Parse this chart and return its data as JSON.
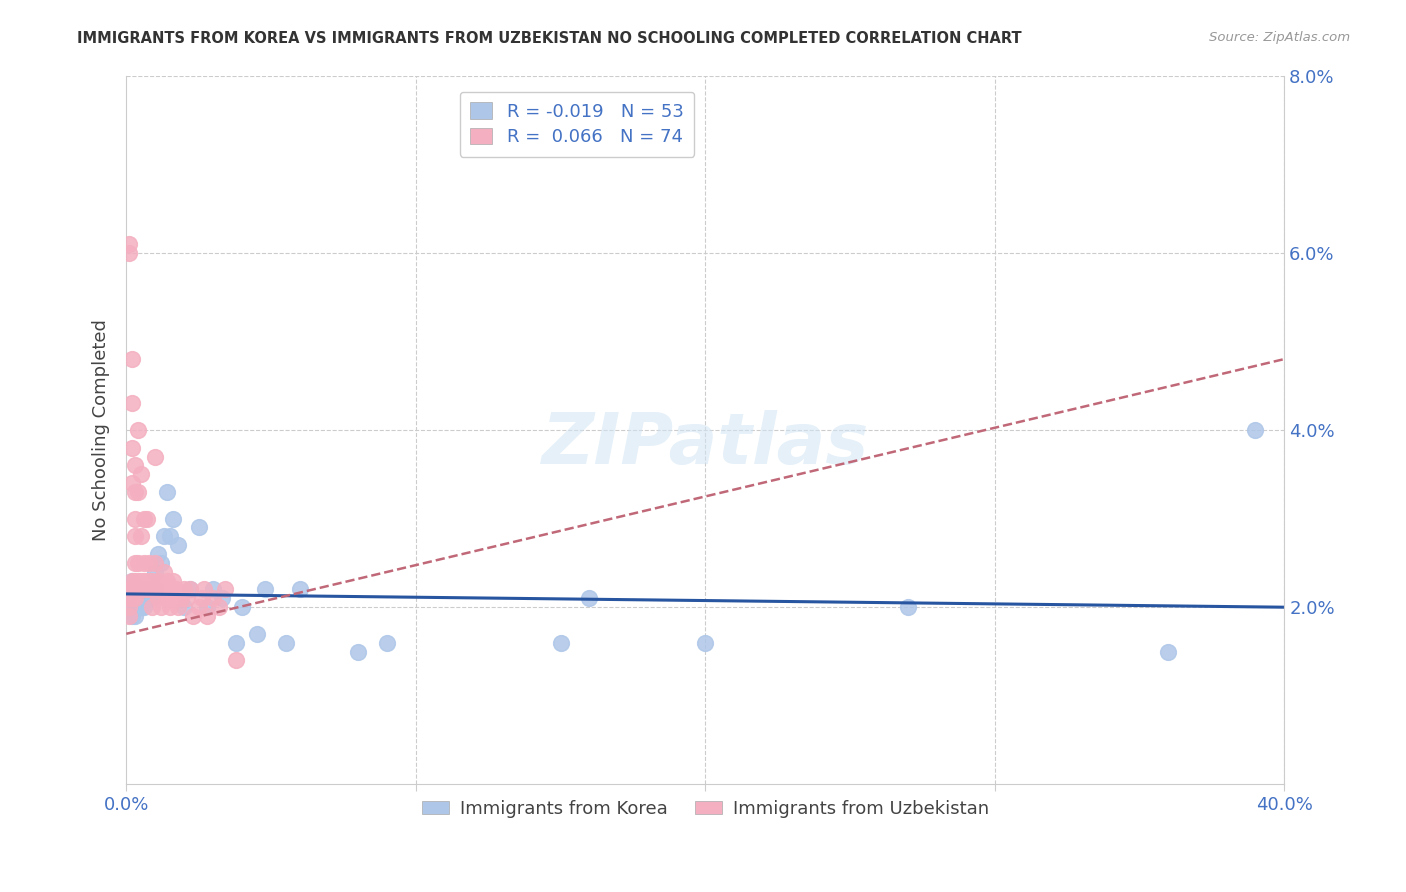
{
  "title": "IMMIGRANTS FROM KOREA VS IMMIGRANTS FROM UZBEKISTAN NO SCHOOLING COMPLETED CORRELATION CHART",
  "source": "Source: ZipAtlas.com",
  "ylabel": "No Schooling Completed",
  "xlabel_korea": "Immigrants from Korea",
  "xlabel_uzbekistan": "Immigrants from Uzbekistan",
  "xlim": [
    0.0,
    0.4
  ],
  "ylim": [
    0.0,
    0.08
  ],
  "yticks": [
    0.0,
    0.02,
    0.04,
    0.06,
    0.08
  ],
  "ytick_labels_right": [
    "",
    "2.0%",
    "4.0%",
    "6.0%",
    "8.0%"
  ],
  "xticks": [
    0.0,
    0.1,
    0.2,
    0.3,
    0.4
  ],
  "xtick_labels": [
    "0.0%",
    "",
    "",
    "",
    "40.0%"
  ],
  "korea_R": -0.019,
  "korea_N": 53,
  "uzbekistan_R": 0.066,
  "uzbekistan_N": 74,
  "korea_color": "#aec6e8",
  "uzbekistan_color": "#f4afc0",
  "korea_line_color": "#2855a0",
  "uzbekistan_line_color": "#c06878",
  "watermark": "ZIPatlas",
  "korea_x": [
    0.001,
    0.001,
    0.002,
    0.002,
    0.002,
    0.002,
    0.003,
    0.003,
    0.003,
    0.003,
    0.004,
    0.004,
    0.004,
    0.005,
    0.005,
    0.005,
    0.006,
    0.006,
    0.007,
    0.007,
    0.008,
    0.008,
    0.009,
    0.009,
    0.01,
    0.01,
    0.011,
    0.012,
    0.013,
    0.014,
    0.015,
    0.016,
    0.018,
    0.02,
    0.022,
    0.025,
    0.028,
    0.03,
    0.033,
    0.038,
    0.04,
    0.045,
    0.048,
    0.055,
    0.06,
    0.08,
    0.09,
    0.15,
    0.16,
    0.2,
    0.27,
    0.36,
    0.39
  ],
  "korea_y": [
    0.021,
    0.022,
    0.02,
    0.021,
    0.023,
    0.019,
    0.021,
    0.02,
    0.022,
    0.019,
    0.021,
    0.022,
    0.02,
    0.021,
    0.02,
    0.022,
    0.021,
    0.02,
    0.022,
    0.021,
    0.022,
    0.021,
    0.022,
    0.021,
    0.024,
    0.022,
    0.026,
    0.025,
    0.028,
    0.033,
    0.028,
    0.03,
    0.027,
    0.02,
    0.022,
    0.029,
    0.02,
    0.022,
    0.021,
    0.016,
    0.02,
    0.017,
    0.022,
    0.016,
    0.022,
    0.015,
    0.016,
    0.016,
    0.021,
    0.016,
    0.02,
    0.015,
    0.04
  ],
  "uzbekistan_x": [
    0.001,
    0.001,
    0.001,
    0.001,
    0.001,
    0.001,
    0.002,
    0.002,
    0.002,
    0.002,
    0.002,
    0.002,
    0.002,
    0.003,
    0.003,
    0.003,
    0.003,
    0.003,
    0.003,
    0.003,
    0.003,
    0.004,
    0.004,
    0.004,
    0.004,
    0.004,
    0.005,
    0.005,
    0.005,
    0.005,
    0.006,
    0.006,
    0.006,
    0.006,
    0.007,
    0.007,
    0.007,
    0.008,
    0.008,
    0.008,
    0.009,
    0.009,
    0.01,
    0.01,
    0.01,
    0.011,
    0.011,
    0.011,
    0.012,
    0.012,
    0.013,
    0.013,
    0.014,
    0.014,
    0.015,
    0.015,
    0.016,
    0.016,
    0.017,
    0.018,
    0.018,
    0.019,
    0.02,
    0.021,
    0.022,
    0.023,
    0.025,
    0.026,
    0.027,
    0.028,
    0.03,
    0.032,
    0.034,
    0.038
  ],
  "uzbekistan_y": [
    0.021,
    0.02,
    0.022,
    0.019,
    0.06,
    0.061,
    0.021,
    0.022,
    0.034,
    0.038,
    0.043,
    0.048,
    0.023,
    0.022,
    0.021,
    0.025,
    0.028,
    0.03,
    0.033,
    0.036,
    0.023,
    0.022,
    0.025,
    0.033,
    0.04,
    0.023,
    0.022,
    0.023,
    0.028,
    0.035,
    0.022,
    0.025,
    0.03,
    0.023,
    0.022,
    0.03,
    0.023,
    0.022,
    0.025,
    0.023,
    0.02,
    0.023,
    0.022,
    0.025,
    0.037,
    0.022,
    0.023,
    0.021,
    0.022,
    0.02,
    0.022,
    0.024,
    0.023,
    0.021,
    0.021,
    0.02,
    0.023,
    0.021,
    0.022,
    0.021,
    0.02,
    0.021,
    0.022,
    0.021,
    0.022,
    0.019,
    0.02,
    0.021,
    0.022,
    0.019,
    0.021,
    0.02,
    0.022,
    0.014
  ],
  "korea_line_y0": 0.0215,
  "korea_line_y1": 0.02,
  "uzbekistan_line_y0": 0.017,
  "uzbekistan_line_y1": 0.048
}
